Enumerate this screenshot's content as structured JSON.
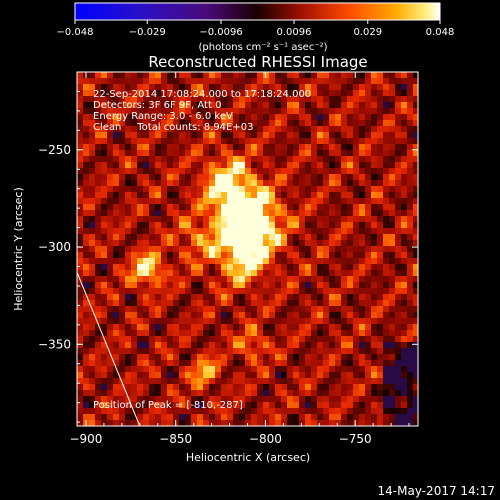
{
  "colorbar": {
    "ticks": [
      "-0.048",
      "-0.029",
      "-0.0096",
      "0.0096",
      "0.029",
      "0.048"
    ],
    "unit_label": "(photons cm⁻² s⁻¹ asec⁻²)",
    "range": [
      -0.048,
      0.048
    ]
  },
  "chart_data": {
    "type": "heatmap",
    "title": "Reconstructed RHESSI Image",
    "annotations": [
      "22-Sep-2014 17:08:24.000 to 17:18:24.000",
      "Detectors: 3F 6F 9F, Att 0",
      "Energy Range: 3.0 - 6.0 keV",
      "Clean     Total counts: 8.94E+03"
    ],
    "peak_label": "Position of Peak = [-810,-287]",
    "peak": [
      -810,
      -287
    ],
    "xlabel": "Heliocentric X (arcsec)",
    "ylabel": "Heliocentric Y (arcsec)",
    "xlim": [
      -905,
      -715
    ],
    "ylim": [
      -392,
      -210
    ],
    "xticks": [
      -900,
      -850,
      -800,
      -750
    ],
    "yticks": [
      -250,
      -300,
      -350
    ],
    "xtick_labels": [
      "−900",
      "−850",
      "−800",
      "−750"
    ],
    "ytick_labels": [
      "−250",
      "−300",
      "−350"
    ],
    "colormap": "red-temperature (black → red → orange → yellow → white)",
    "limb": [
      [
        -905,
        -313
      ],
      [
        -870,
        -392
      ]
    ]
  },
  "footer": {
    "date": "14-May-2017 14:17"
  }
}
